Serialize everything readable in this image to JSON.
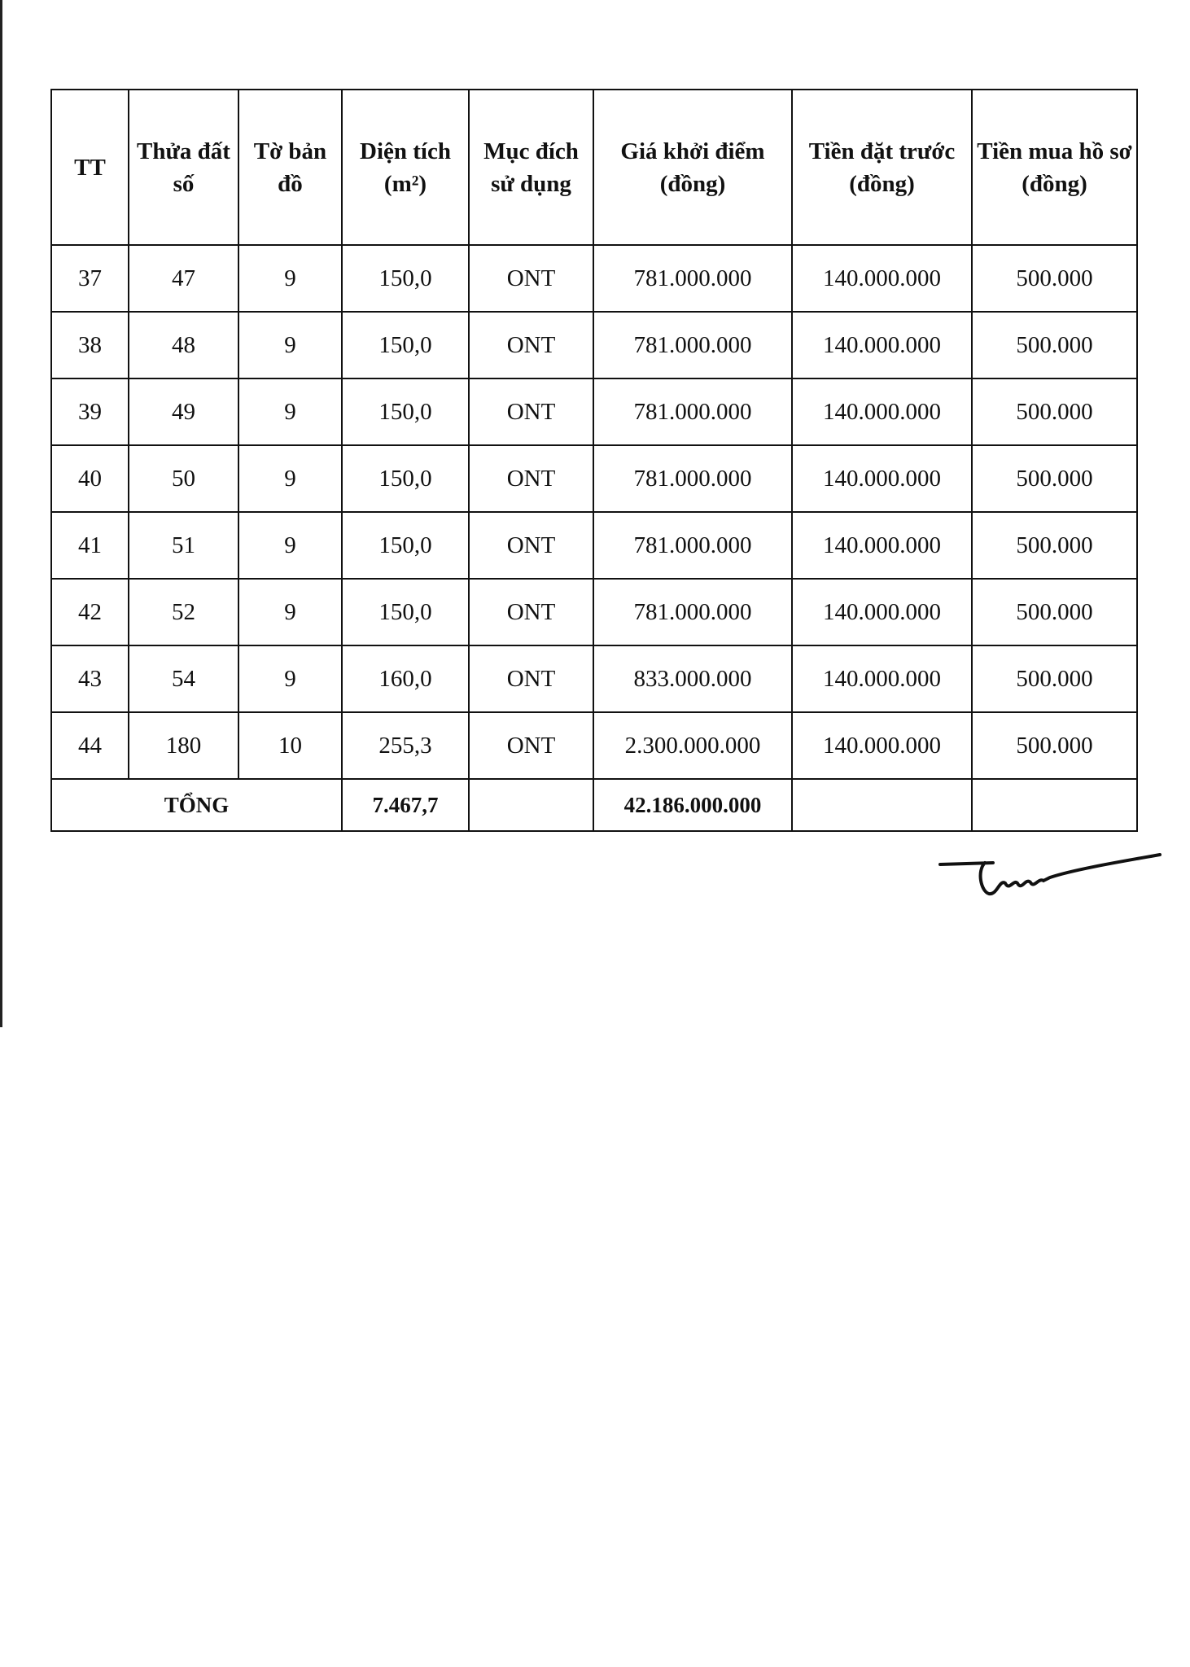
{
  "table": {
    "headers": [
      "TT",
      "Thửa đất số",
      "Tờ bản đồ",
      "Diện tích (m²)",
      "Mục đích sử dụng",
      "Giá khởi điểm (đồng)",
      "Tiền đặt trước (đồng)",
      "Tiền mua hồ sơ (đồng)"
    ],
    "rows": [
      [
        "37",
        "47",
        "9",
        "150,0",
        "ONT",
        "781.000.000",
        "140.000.000",
        "500.000"
      ],
      [
        "38",
        "48",
        "9",
        "150,0",
        "ONT",
        "781.000.000",
        "140.000.000",
        "500.000"
      ],
      [
        "39",
        "49",
        "9",
        "150,0",
        "ONT",
        "781.000.000",
        "140.000.000",
        "500.000"
      ],
      [
        "40",
        "50",
        "9",
        "150,0",
        "ONT",
        "781.000.000",
        "140.000.000",
        "500.000"
      ],
      [
        "41",
        "51",
        "9",
        "150,0",
        "ONT",
        "781.000.000",
        "140.000.000",
        "500.000"
      ],
      [
        "42",
        "52",
        "9",
        "150,0",
        "ONT",
        "781.000.000",
        "140.000.000",
        "500.000"
      ],
      [
        "43",
        "54",
        "9",
        "160,0",
        "ONT",
        "833.000.000",
        "140.000.000",
        "500.000"
      ],
      [
        "44",
        "180",
        "10",
        "255,3",
        "ONT",
        "2.300.000.000",
        "140.000.000",
        "500.000"
      ]
    ],
    "total": {
      "label": "TỔNG",
      "area": "7.467,7",
      "price": "42.186.000.000"
    }
  }
}
